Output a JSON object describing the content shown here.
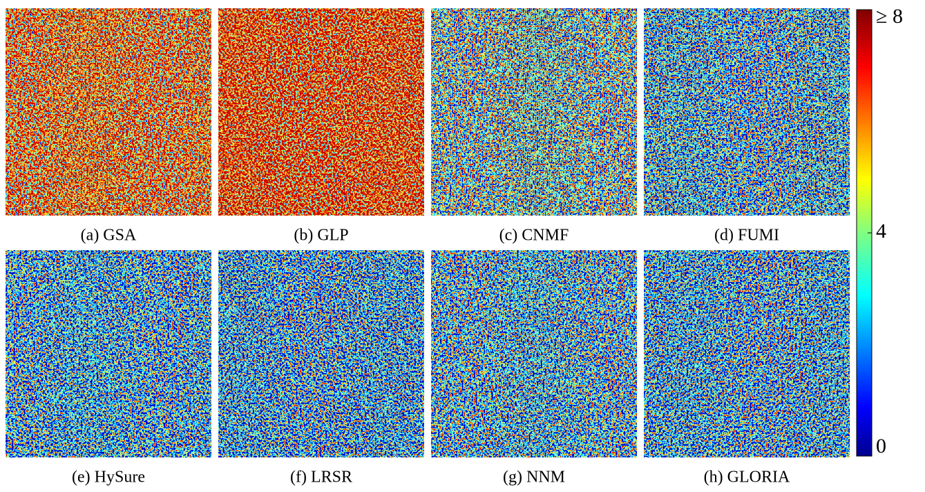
{
  "panels": [
    {
      "label": "(a) GSA"
    },
    {
      "label": "(b) GLP"
    },
    {
      "label": "(c) CNMF"
    },
    {
      "label": "(d) FUMI"
    },
    {
      "label": "(e) HySure"
    },
    {
      "label": "(f) LRSR"
    },
    {
      "label": "(g) NNM"
    },
    {
      "label": "(h) GLORIA"
    }
  ],
  "colorbar": {
    "lim": [
      0,
      8
    ],
    "ticks": [
      0,
      4,
      {
        "value": 8,
        "label": "≥ 8"
      }
    ]
  }
}
